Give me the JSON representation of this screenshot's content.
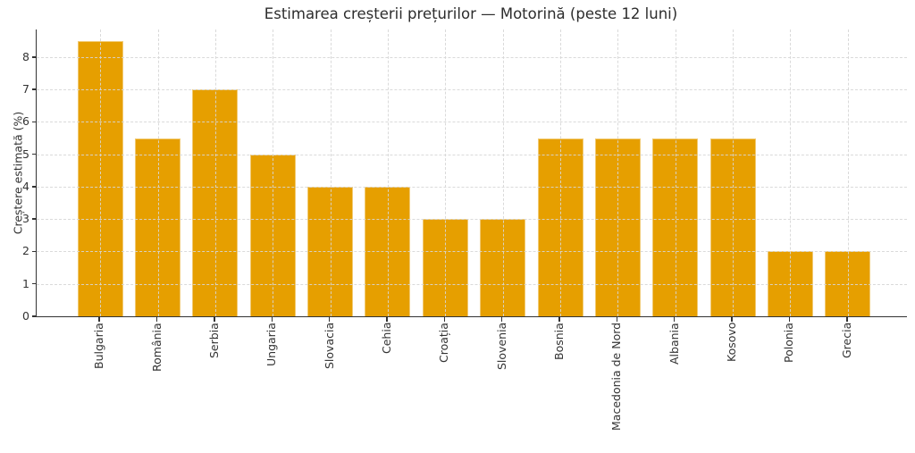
{
  "chart_data": {
    "type": "bar",
    "title": "Estimarea creșterii prețurilor — Motorină (peste 12 luni)",
    "xlabel": "",
    "ylabel": "Creștere estimată (%)",
    "categories": [
      "Bulgaria",
      "România",
      "Serbia",
      "Ungaria",
      "Slovacia",
      "Cehia",
      "Croația",
      "Slovenia",
      "Bosnia",
      "Macedonia de Nord",
      "Albania",
      "Kosovo",
      "Polonia",
      "Grecia"
    ],
    "values": [
      8.5,
      5.5,
      7,
      5,
      4,
      4,
      3,
      3,
      5.5,
      5.5,
      5.5,
      5.5,
      2,
      2
    ],
    "yticks": [
      0,
      1,
      2,
      3,
      4,
      5,
      6,
      7,
      8
    ],
    "ylim": [
      0,
      8.85
    ],
    "grid": true,
    "grid_style": "dashed",
    "legend": "none",
    "bar_color": "#E69F00",
    "axis_color": "#333333",
    "grid_color": "#d6d6d6",
    "background_color": "#ffffff"
  }
}
